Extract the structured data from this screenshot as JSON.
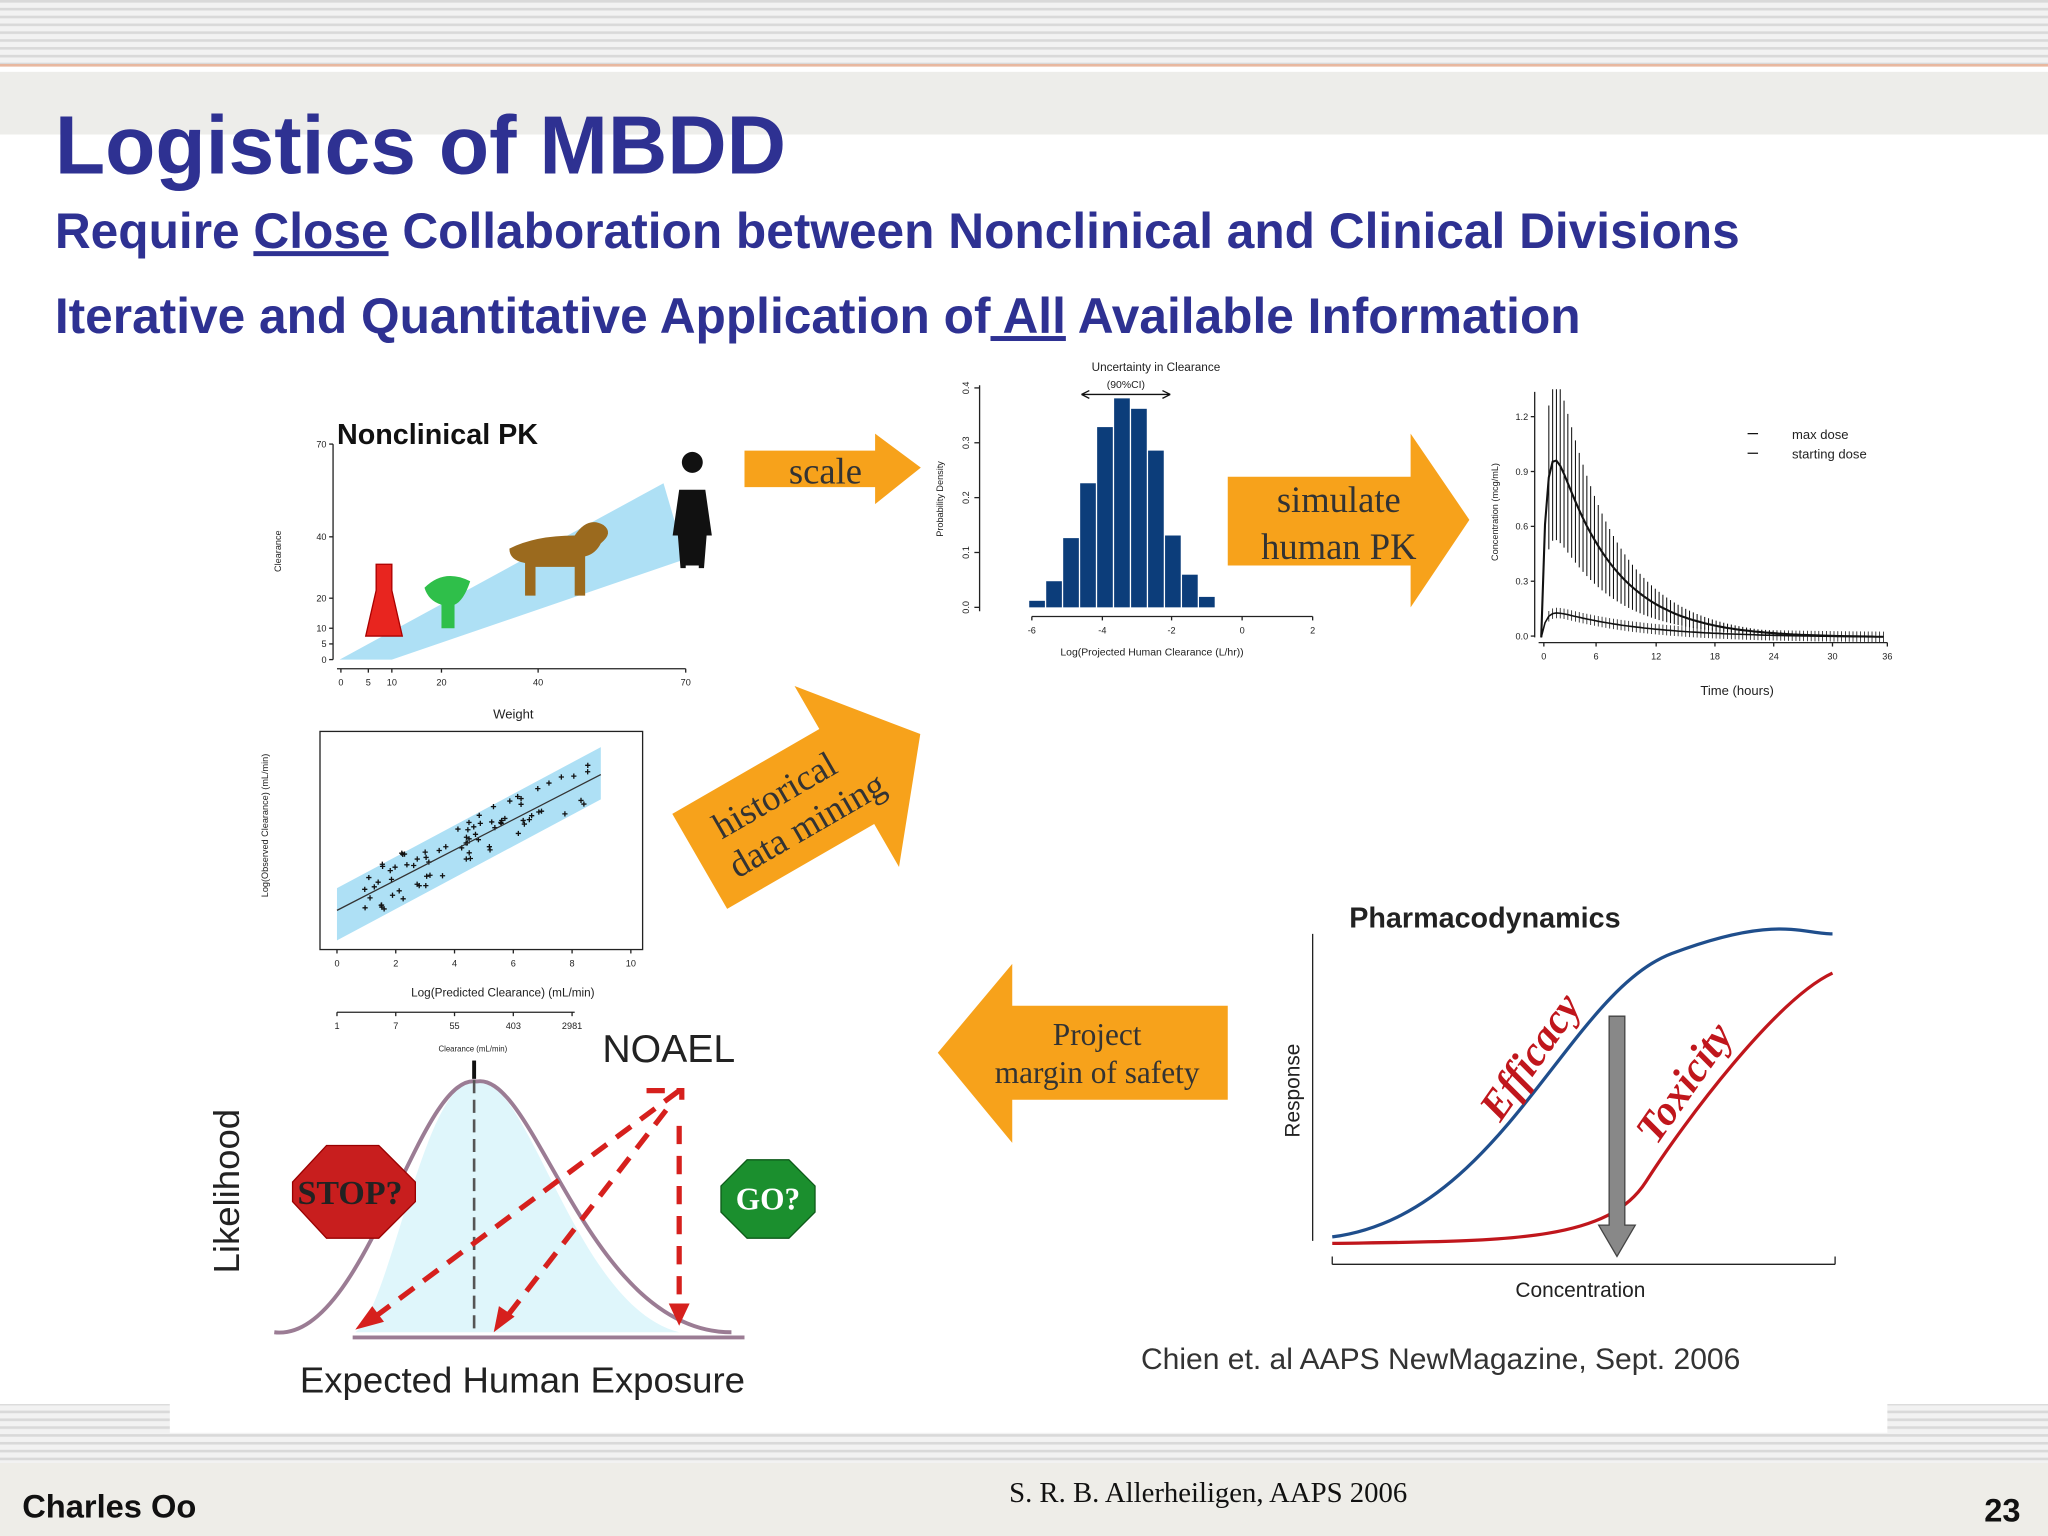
{
  "header": {
    "title": "Logistics of MBDD",
    "line1": [
      "Require ",
      "Close",
      " Collaboration between Nonclinical and Clinical Divisions"
    ],
    "line2": [
      "Iterative and Quantitative Application of",
      " All",
      " Available Information"
    ]
  },
  "panels": {
    "nonclinical_pk": {
      "title": "Nonclinical PK",
      "y_label": "Clearance",
      "x_label": "Weight",
      "yticks": [
        "70",
        "40",
        "20",
        "10",
        "5",
        "0"
      ],
      "xticks": [
        "0",
        "5",
        "10",
        "20",
        "40",
        "70"
      ]
    },
    "histogram": {
      "title": "Uncertainty in Clearance",
      "subtitle": "(90%CI)",
      "y_label": "Probability Density",
      "x_label": "Log(Projected Human Clearance (L/hr))",
      "yticks": [
        "0.0",
        "0.1",
        "0.2",
        "0.3",
        "0.4"
      ],
      "xticks": [
        "-6",
        "-4",
        "-2",
        "0",
        "2"
      ]
    },
    "simulation": {
      "y_label": "Concentration (mcg/mL)",
      "x_label": "Time (hours)",
      "legend": [
        "max dose",
        "starting dose"
      ],
      "yticks": [
        "0.0",
        "0.3",
        "0.6",
        "0.9",
        "1.2"
      ],
      "xticks": [
        "0",
        "6",
        "12",
        "18",
        "24",
        "30",
        "36"
      ]
    },
    "historical": {
      "y_label": "Log(Observed Clearance) (mL/min)",
      "x_label": "Log(Predicted Clearance) (mL/min)",
      "xticks": [
        "0",
        "2",
        "4",
        "6",
        "8",
        "10"
      ],
      "x2_label": "Clearance (mL/min)",
      "x2ticks": [
        "1",
        "7",
        "55",
        "403",
        "2981"
      ]
    },
    "pd": {
      "title": "Pharmacodynamics",
      "y_label": "Response",
      "x_label": "Concentration",
      "efficacy": "Efficacy",
      "toxicity": "Toxicity"
    },
    "exposure": {
      "y_label": "Likelihood",
      "x_label": "Expected Human Exposure",
      "noael": "NOAEL",
      "stop": "STOP?",
      "go": "GO?"
    }
  },
  "arrows": {
    "scale": "scale",
    "simulate": [
      "simulate",
      "human PK"
    ],
    "historical": [
      "historical",
      "data mining"
    ],
    "project": [
      "Project",
      "margin of safety"
    ]
  },
  "citation": "Chien et. al AAPS NewMagazine, Sept. 2006",
  "footer": {
    "author": "Charles Oo",
    "source": "S. R. B. Allerheiligen, AAPS 2006",
    "page": "23"
  }
}
